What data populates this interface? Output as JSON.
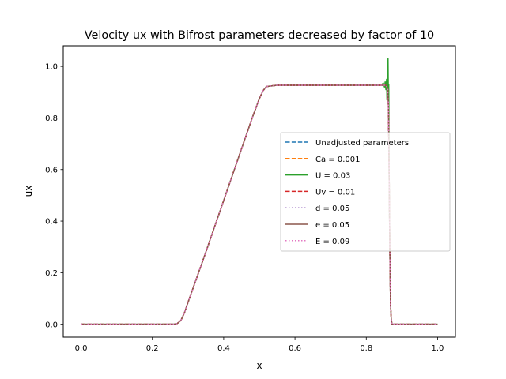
{
  "chart_data": {
    "type": "line",
    "title": "Velocity ux with Bifrost parameters decreased by factor of 10",
    "xlabel": "x",
    "ylabel": "ux",
    "xlim": [
      -0.05,
      1.05
    ],
    "ylim": [
      -0.05,
      1.08
    ],
    "xticks": [
      0.0,
      0.2,
      0.4,
      0.6,
      0.8,
      1.0
    ],
    "xtick_labels": [
      "0.0",
      "0.2",
      "0.4",
      "0.6",
      "0.8",
      "1.0"
    ],
    "yticks": [
      0.0,
      0.2,
      0.4,
      0.6,
      0.8,
      1.0
    ],
    "ytick_labels": [
      "0.0",
      "0.2",
      "0.4",
      "0.6",
      "0.8",
      "1.0"
    ],
    "grid": false,
    "legend_position": "center-right",
    "base_profile": {
      "x": [
        0.0,
        0.26,
        0.27,
        0.28,
        0.29,
        0.3,
        0.35,
        0.4,
        0.45,
        0.48,
        0.5,
        0.51,
        0.52,
        0.55,
        0.6,
        0.7,
        0.8,
        0.84,
        0.855,
        0.86,
        0.862,
        0.864,
        0.866,
        0.868,
        0.87,
        0.872,
        0.875,
        0.88,
        0.9,
        1.0
      ],
      "y": [
        0.0,
        0.0,
        0.003,
        0.015,
        0.045,
        0.085,
        0.28,
        0.48,
        0.68,
        0.8,
        0.875,
        0.905,
        0.922,
        0.927,
        0.927,
        0.927,
        0.927,
        0.927,
        0.927,
        0.915,
        0.85,
        0.6,
        0.3,
        0.08,
        0.02,
        0.0,
        0.0,
        0.0,
        0.0,
        0.0
      ]
    },
    "u_profile": {
      "x": [
        0.0,
        0.26,
        0.27,
        0.28,
        0.29,
        0.3,
        0.35,
        0.4,
        0.45,
        0.48,
        0.5,
        0.51,
        0.52,
        0.55,
        0.6,
        0.7,
        0.8,
        0.84,
        0.848,
        0.851,
        0.853,
        0.855,
        0.857,
        0.858,
        0.859,
        0.86,
        0.861,
        0.862,
        0.863,
        0.864,
        0.866,
        0.868,
        0.87,
        0.872,
        0.875,
        0.88,
        0.9,
        1.0
      ],
      "y": [
        0.0,
        0.0,
        0.003,
        0.015,
        0.045,
        0.085,
        0.28,
        0.48,
        0.68,
        0.8,
        0.875,
        0.905,
        0.922,
        0.927,
        0.927,
        0.927,
        0.927,
        0.927,
        0.935,
        0.92,
        0.94,
        0.91,
        0.95,
        0.87,
        0.96,
        0.89,
        1.03,
        0.87,
        0.93,
        0.6,
        0.3,
        0.08,
        0.02,
        0.0,
        0.0,
        0.0,
        0.0,
        0.0
      ]
    },
    "series": [
      {
        "name": "Unadjusted parameters",
        "color": "#1f77b4",
        "dash": "dashed",
        "profile": "base"
      },
      {
        "name": "Ca = 0.001",
        "color": "#ff7f0e",
        "dash": "dashed",
        "profile": "base"
      },
      {
        "name": "U = 0.03",
        "color": "#2ca02c",
        "dash": "solid",
        "profile": "u"
      },
      {
        "name": "Uv = 0.01",
        "color": "#d62728",
        "dash": "dashed",
        "profile": "base"
      },
      {
        "name": "d = 0.05",
        "color": "#9467bd",
        "dash": "dotted",
        "profile": "base"
      },
      {
        "name": "e = 0.05",
        "color": "#8c564b",
        "dash": "solid",
        "profile": "base"
      },
      {
        "name": "E = 0.09",
        "color": "#e377c2",
        "dash": "dotted",
        "profile": "base"
      }
    ],
    "draw_order": [
      2,
      0,
      1,
      3,
      4,
      5,
      6
    ]
  }
}
